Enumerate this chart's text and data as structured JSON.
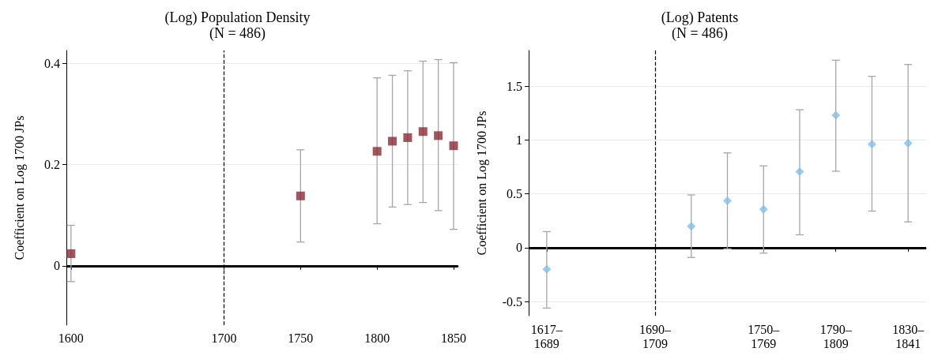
{
  "chart_data": [
    {
      "type": "scatter",
      "title": "(Log) Population Density",
      "subtitle": "(N = 486)",
      "ylabel": "Coefficient on Log 1700 JPs",
      "x": [
        1600,
        1750,
        1800,
        1810,
        1820,
        1830,
        1840,
        1850
      ],
      "series": [
        {
          "color": "#8b2b33",
          "values": [
            0.024,
            0.138,
            0.226,
            0.246,
            0.253,
            0.265,
            0.257,
            0.237
          ],
          "errors": [
            [
              -0.031,
              0.08
            ],
            [
              0.047,
              0.229
            ],
            [
              0.083,
              0.371
            ],
            [
              0.116,
              0.376
            ],
            [
              0.121,
              0.385
            ],
            [
              0.125,
              0.404
            ],
            [
              0.109,
              0.407
            ],
            [
              0.072,
              0.401
            ]
          ]
        }
      ],
      "xlim": [
        1597,
        1853
      ],
      "xticks": [
        1600,
        1700,
        1750,
        1800,
        1850
      ],
      "ylim": [
        -0.117,
        0.425
      ],
      "yticks": [
        0,
        0.2,
        0.4
      ],
      "grid": "y",
      "marker": "square",
      "ref_lines": [
        {
          "axis": "x",
          "value": 1700,
          "line_style": "dashed",
          "color": "#000000"
        },
        {
          "axis": "y",
          "value": 0,
          "line_style": "solid",
          "color": "#000000"
        }
      ]
    },
    {
      "type": "scatter",
      "title": "(Log) Patents",
      "subtitle": "(N = 486)",
      "ylabel": "Coefficient on Log 1700 JPs",
      "categories": [
        "1617–\n1689",
        null,
        null,
        "1690–\n1709",
        null,
        null,
        "1750–\n1769",
        null,
        "1790–\n1809",
        null,
        "1830–\n1841"
      ],
      "series": [
        {
          "color": "#7fbfe8",
          "values": [
            -0.2,
            null,
            null,
            null,
            0.2,
            0.436,
            0.357,
            0.707,
            1.23,
            0.96,
            0.97
          ],
          "errors": [
            [
              -0.56,
              0.15
            ],
            null,
            null,
            null,
            [
              -0.09,
              0.49
            ],
            [
              -0.01,
              0.88
            ],
            [
              -0.05,
              0.76
            ],
            [
              0.12,
              1.28
            ],
            [
              0.71,
              1.74
            ],
            [
              0.34,
              1.59
            ],
            [
              0.24,
              1.7
            ]
          ]
        }
      ],
      "ylim": [
        -0.63,
        1.83
      ],
      "yticks": [
        -0.5,
        0,
        0.5,
        1,
        1.5
      ],
      "grid": "y",
      "marker": "diamond",
      "ref_lines": [
        {
          "axis": "x",
          "value": "1690–\n1709",
          "line_style": "dashed",
          "color": "#000000"
        },
        {
          "axis": "y",
          "value": 0,
          "line_style": "solid",
          "color": "#000000"
        }
      ]
    }
  ]
}
